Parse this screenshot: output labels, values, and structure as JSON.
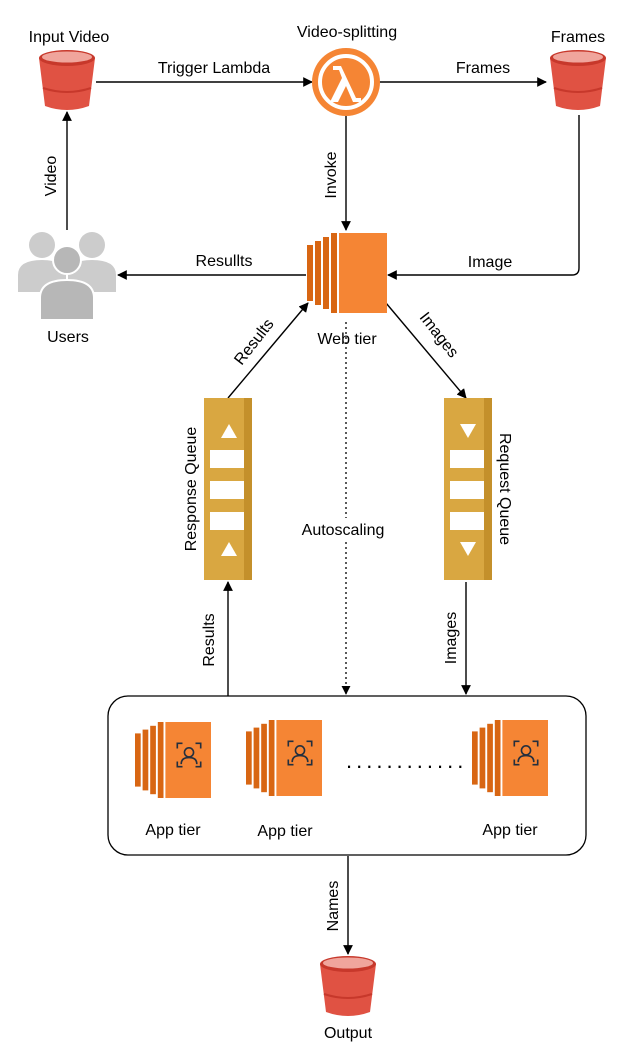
{
  "nodes": {
    "input_video": "Input Video",
    "video_splitting": "Video-splitting",
    "frames": "Frames",
    "users": "Users",
    "web_tier": "Web tier",
    "response_queue": "Response Queue",
    "request_queue": "Request Queue",
    "app_tier": [
      "App tier",
      "App tier",
      "App tier"
    ],
    "ellipsis": "............",
    "output": "Output"
  },
  "edges": {
    "trigger_lambda": "Trigger Lambda",
    "frames": "Frames",
    "video": "Video",
    "invoke": "Invoke",
    "image": "Image",
    "results_to_users": "Resullts",
    "results_to_web": "Results",
    "images_to_queue": "Images",
    "autoscaling": "Autoscaling",
    "results_from_app": "Results",
    "images_to_app": "Images",
    "names": "Names"
  },
  "colors": {
    "bucket": "#e05243",
    "bucket_dark": "#c7382b",
    "lambda": "#f58534",
    "ec2_orange": "#f58534",
    "ec2_dark": "#d86613",
    "queue": "#d9a741",
    "queue_dark": "#c4902b",
    "users_gray": "#cccccc"
  },
  "icons": [
    "s3-bucket-icon",
    "lambda-icon",
    "ec2-instance-icon",
    "sqs-queue-icon",
    "users-icon",
    "face-recognition-icon"
  ]
}
